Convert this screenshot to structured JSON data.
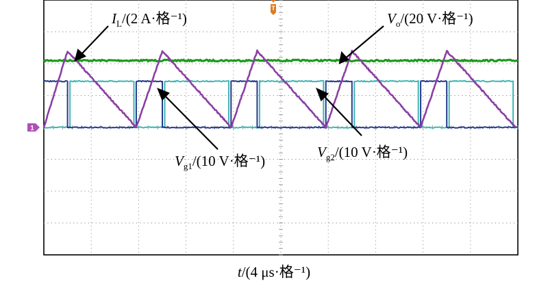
{
  "chart_data": {
    "type": "line",
    "x_axis_label": {
      "var": "t",
      "unit": "/(4 μs·格⁻¹)"
    },
    "time_per_division_us": 4,
    "xlim": [
      0,
      40
    ],
    "grid": {
      "divisions_x": 10,
      "divisions_y": 8,
      "shown": true,
      "style": "dotted"
    },
    "trigger_marker": "T",
    "ground_marker": "1",
    "series": [
      {
        "name": "I_L",
        "label_main": "I",
        "label_sub": "L",
        "label_unit": "/(2 A·格⁻¹)",
        "color": "#8B3FA3",
        "waveform": "triangle",
        "level_div": [
          0.0,
          2.4
        ],
        "peaks_us": [
          2.0,
          10.0,
          18.0,
          26.0,
          34.0
        ],
        "valleys_us": [
          0.0,
          7.8,
          15.8,
          23.8,
          31.8,
          39.8
        ]
      },
      {
        "name": "V_o",
        "label_main": "V",
        "label_sub": "o",
        "label_unit": "/(20 V·格⁻¹)",
        "color": "#1E9A1E",
        "waveform": "dc",
        "level_div": 2.1
      },
      {
        "name": "V_g1",
        "label_main": "V",
        "label_sub": "g1",
        "label_unit": "/(10 V·格⁻¹)",
        "color": "#233A8C",
        "waveform": "pulse",
        "level_div": [
          0.0,
          1.45
        ],
        "high_intervals_us": [
          [
            0.0,
            2.0
          ],
          [
            7.8,
            10.0
          ],
          [
            15.8,
            18.0
          ],
          [
            23.8,
            26.0
          ],
          [
            31.8,
            34.0
          ]
        ]
      },
      {
        "name": "V_g2",
        "label_main": "V",
        "label_sub": "g2",
        "label_unit": "/(10 V·格⁻¹)",
        "color": "#3FB6B2",
        "waveform": "pulse",
        "level_div": [
          0.0,
          1.45
        ],
        "high_intervals_us": [
          [
            2.2,
            7.6
          ],
          [
            10.2,
            15.6
          ],
          [
            18.2,
            23.6
          ],
          [
            26.2,
            31.6
          ],
          [
            34.2,
            39.6
          ]
        ]
      }
    ]
  }
}
